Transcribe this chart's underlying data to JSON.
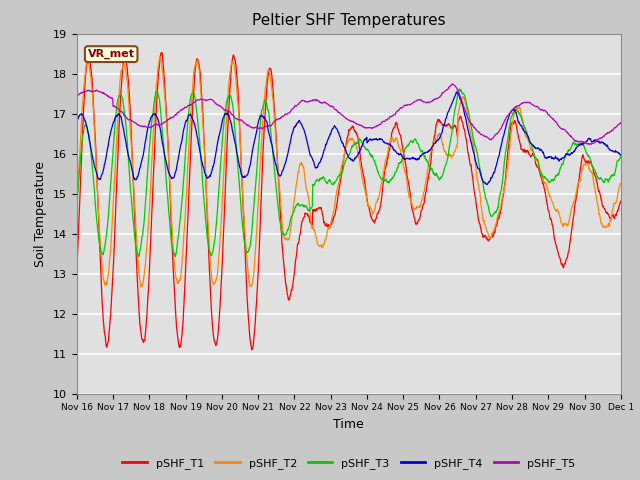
{
  "title": "Peltier SHF Temperatures",
  "xlabel": "Time",
  "ylabel": "Soil Temperature",
  "ylim": [
    10.0,
    19.0
  ],
  "yticks": [
    10.0,
    11.0,
    12.0,
    13.0,
    14.0,
    15.0,
    16.0,
    17.0,
    18.0,
    19.0
  ],
  "fig_facecolor": "#c8c8c8",
  "ax_facecolor": "#e0e0e0",
  "annotation_text": "VR_met",
  "series_colors": {
    "pSHF_T1": "#ff0000",
    "pSHF_T2": "#ff8800",
    "pSHF_T3": "#00cc00",
    "pSHF_T4": "#0000dd",
    "pSHF_T5": "#bb00bb"
  },
  "series_names": [
    "pSHF_T1",
    "pSHF_T2",
    "pSHF_T3",
    "pSHF_T4",
    "pSHF_T5"
  ],
  "x_start": 16,
  "x_end": 31,
  "xtick_positions": [
    16,
    17,
    18,
    19,
    20,
    21,
    22,
    23,
    24,
    25,
    26,
    27,
    28,
    29,
    30,
    31
  ],
  "xtick_labels": [
    "Nov 16",
    "Nov 17",
    "Nov 18",
    "Nov 19",
    "Nov 20",
    "Nov 21",
    "Nov 22",
    "Nov 23",
    "Nov 24",
    "Nov 25",
    "Nov 26",
    "Nov 27",
    "Nov 28",
    "Nov 29",
    "Nov 30",
    "Dec 1"
  ]
}
